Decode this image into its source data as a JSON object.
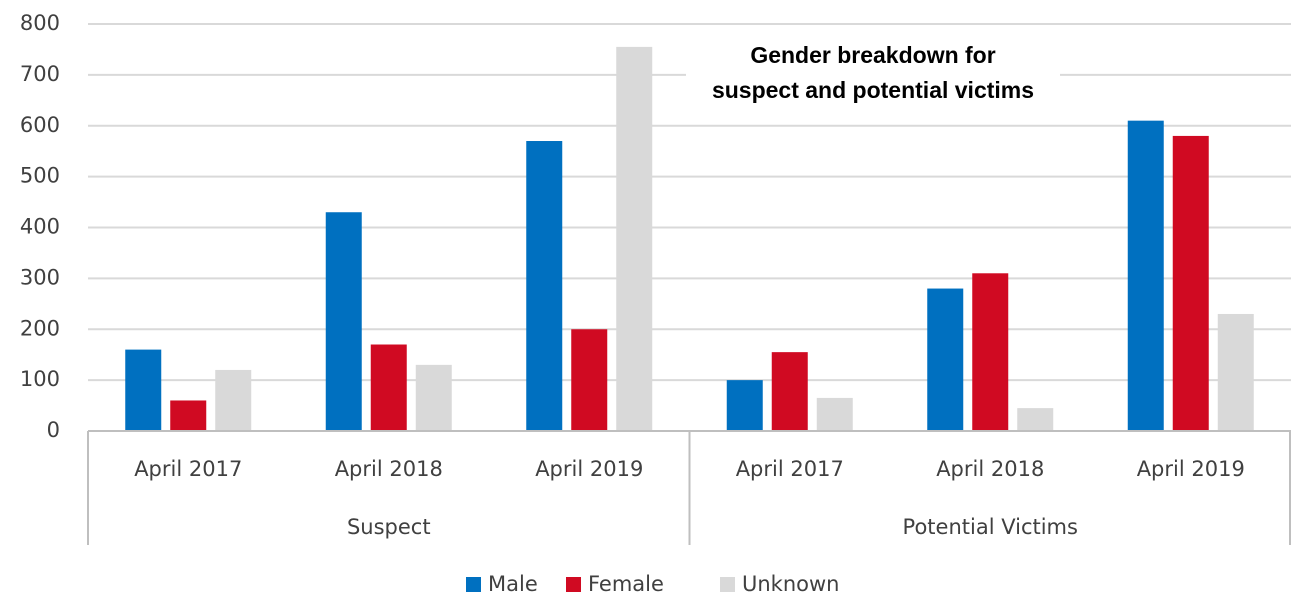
{
  "chart_data": {
    "type": "bar",
    "title": [
      "Gender breakdown for",
      "suspect and potential victims"
    ],
    "categories": [
      "April 2017",
      "April 2018",
      "April 2019",
      "April 2017",
      "April 2018",
      "April 2019"
    ],
    "group_labels": [
      "Suspect",
      "Potential Victims"
    ],
    "series": [
      {
        "name": "Male",
        "color": "#0070c0",
        "values": [
          160,
          430,
          570,
          100,
          280,
          610
        ]
      },
      {
        "name": "Female",
        "color": "#d00a22",
        "values": [
          60,
          170,
          200,
          155,
          310,
          580
        ]
      },
      {
        "name": "Unknown",
        "color": "#d9d9d9",
        "values": [
          120,
          130,
          755,
          65,
          45,
          230
        ]
      }
    ],
    "ylim": [
      0,
      800
    ],
    "yticks": [
      0,
      100,
      200,
      300,
      400,
      500,
      600,
      700,
      800
    ],
    "grid": true,
    "legend": "bottom"
  }
}
